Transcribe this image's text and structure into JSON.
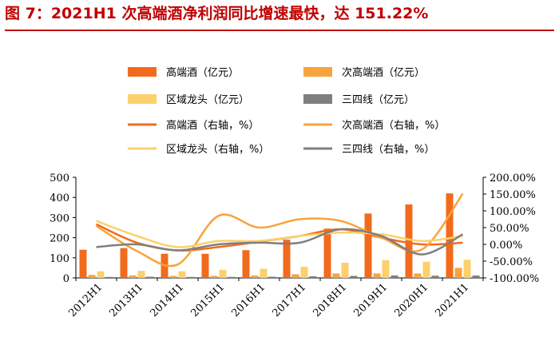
{
  "title": "图 7：2021H1 次高端酒净利润同比增速最快，达 151.22%",
  "chart_data": {
    "type": "bar",
    "categories": [
      "2012H1",
      "2013H1",
      "2014H1",
      "2015H1",
      "2016H1",
      "2017H1",
      "2018H1",
      "2019H1",
      "2020H1",
      "2021H1"
    ],
    "series": [
      {
        "name": "高端酒（亿元）",
        "kind": "bar",
        "axis": "left",
        "color": "#f26b1d",
        "values": [
          140,
          148,
          120,
          120,
          138,
          190,
          245,
          320,
          365,
          420
        ]
      },
      {
        "name": "次高端酒（亿元）",
        "kind": "bar",
        "axis": "left",
        "color": "#f9a33b",
        "values": [
          15,
          12,
          10,
          10,
          12,
          18,
          22,
          22,
          22,
          50
        ]
      },
      {
        "name": "区域龙头（亿元）",
        "kind": "bar",
        "axis": "left",
        "color": "#fcd06b",
        "values": [
          33,
          35,
          33,
          40,
          45,
          55,
          75,
          88,
          80,
          90
        ]
      },
      {
        "name": "三四线（亿元）",
        "kind": "bar",
        "axis": "left",
        "color": "#7f7f7f",
        "values": [
          5,
          6,
          5,
          5,
          6,
          8,
          10,
          12,
          11,
          12
        ]
      },
      {
        "name": "高端酒（右轴，%）",
        "kind": "line",
        "axis": "right",
        "color": "#f26b1d",
        "values": [
          60,
          5,
          -18,
          -8,
          8,
          25,
          45,
          20,
          0,
          5
        ]
      },
      {
        "name": "次高端酒（右轴，%）",
        "kind": "line",
        "axis": "right",
        "color": "#f9a33b",
        "values": [
          55,
          -20,
          -60,
          85,
          50,
          75,
          70,
          20,
          -15,
          151.22
        ]
      },
      {
        "name": "区域龙头（右轴，%）",
        "kind": "line",
        "axis": "right",
        "color": "#fcd06b",
        "values": [
          70,
          25,
          -8,
          10,
          10,
          25,
          35,
          30,
          10,
          25
        ]
      },
      {
        "name": "三四线（右轴，%）",
        "kind": "line",
        "axis": "right",
        "color": "#7f7f7f",
        "values": [
          -8,
          0,
          -18,
          0,
          5,
          5,
          45,
          25,
          -30,
          30
        ]
      }
    ],
    "y_left": {
      "min": 0,
      "max": 500,
      "ticks": [
        "0",
        "100",
        "200",
        "300",
        "400",
        "500"
      ]
    },
    "y_right": {
      "min": -100,
      "max": 200,
      "ticks": [
        "-100.00%",
        "-50.00%",
        "0.00%",
        "50.00%",
        "100.00%",
        "150.00%",
        "200.00%"
      ]
    },
    "legend_position": "top",
    "grid": false
  }
}
